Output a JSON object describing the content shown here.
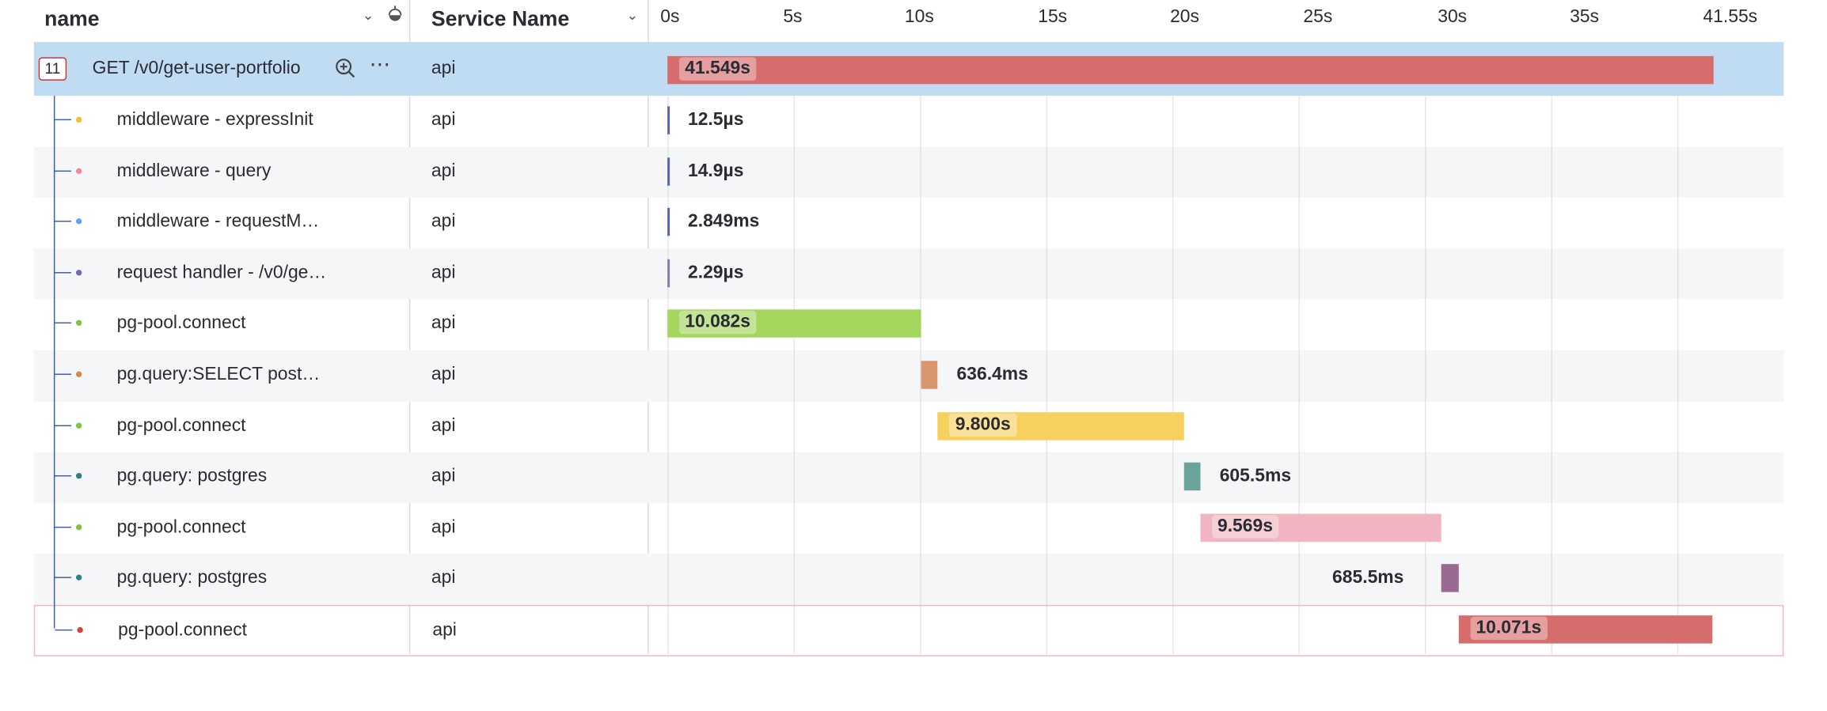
{
  "columns": {
    "name": "name",
    "service": "Service Name"
  },
  "timeline": {
    "ticks": [
      "0s",
      "5s",
      "10s",
      "15s",
      "20s",
      "25s",
      "30s",
      "35s",
      "41.55s"
    ]
  },
  "root": {
    "count": "11",
    "label": "GET /v0/get-user-portfolio",
    "service": "api",
    "duration": "41.549s",
    "color": "#d76c6c"
  },
  "spans": [
    {
      "label": "middleware - expressInit",
      "service": "api",
      "duration": "12.5µs",
      "dot": "#f2c12e",
      "color": "#5561c6"
    },
    {
      "label": "middleware - query",
      "service": "api",
      "duration": "14.9µs",
      "dot": "#f08a9a",
      "color": "#5561c6"
    },
    {
      "label": "middleware - requestM…",
      "service": "api",
      "duration": "2.849ms",
      "dot": "#5aa6e6",
      "color": "#5561c6"
    },
    {
      "label": "request handler - /v0/ge…",
      "service": "api",
      "duration": "2.29µs",
      "dot": "#7b63b3",
      "color": "#8a7ab8"
    },
    {
      "label": "pg-pool.connect",
      "service": "api",
      "duration": "10.082s",
      "dot": "#7fc43f",
      "color": "#a4d65e"
    },
    {
      "label": "pg.query:SELECT post…",
      "service": "api",
      "duration": "636.4ms",
      "dot": "#d08a52",
      "color": "#d9956b"
    },
    {
      "label": "pg-pool.connect",
      "service": "api",
      "duration": "9.800s",
      "dot": "#7fc43f",
      "color": "#f7d160"
    },
    {
      "label": "pg.query: postgres",
      "service": "api",
      "duration": "605.5ms",
      "dot": "#2f7f86",
      "color": "#6aa39a"
    },
    {
      "label": "pg-pool.connect",
      "service": "api",
      "duration": "9.569s",
      "dot": "#7fc43f",
      "color": "#f0b5c0"
    },
    {
      "label": "pg.query: postgres",
      "service": "api",
      "duration": "685.5ms",
      "dot": "#2f7f86",
      "color": "#9a6a92"
    },
    {
      "label": "pg-pool.connect",
      "service": "api",
      "duration": "10.071s",
      "dot": "#d0453a",
      "color": "#d76c6c"
    }
  ]
}
